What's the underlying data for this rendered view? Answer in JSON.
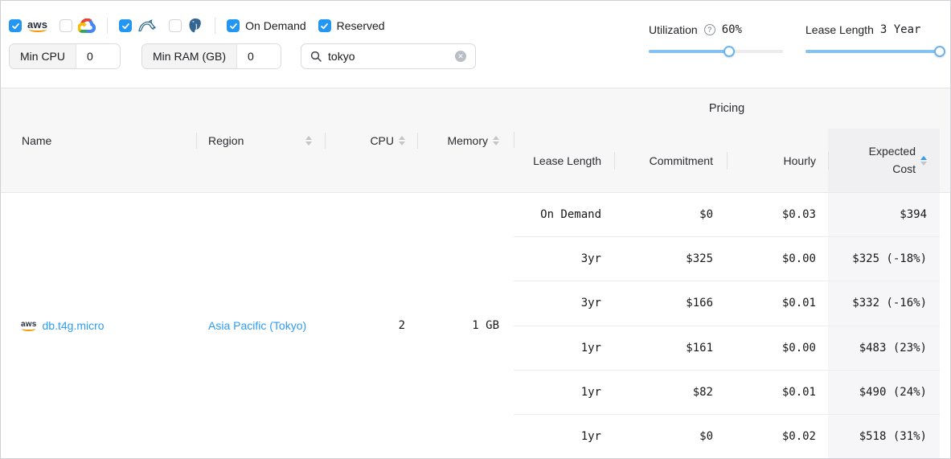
{
  "filters": {
    "providers": [
      {
        "name": "aws",
        "checked": true
      },
      {
        "name": "google-cloud",
        "checked": false
      }
    ],
    "engines": [
      {
        "name": "mysql",
        "checked": true
      },
      {
        "name": "postgresql",
        "checked": false
      }
    ],
    "pricing_types": [
      {
        "label": "On Demand",
        "checked": true
      },
      {
        "label": "Reserved",
        "checked": true
      }
    ],
    "min_cpu": {
      "label": "Min CPU",
      "value": "0"
    },
    "min_ram": {
      "label": "Min RAM (GB)",
      "value": "0"
    },
    "search": {
      "value": "tokyo"
    },
    "utilization": {
      "label": "Utilization",
      "value": "60%",
      "percent": 60
    },
    "lease_length": {
      "label": "Lease Length",
      "value": "3 Year",
      "percent": 100
    }
  },
  "table": {
    "headers": {
      "name": "Name",
      "region": "Region",
      "cpu": "CPU",
      "memory": "Memory",
      "pricing_group": "Pricing",
      "lease_length": "Lease Length",
      "commitment": "Commitment",
      "hourly": "Hourly",
      "expected_cost_line1": "Expected",
      "expected_cost_line2": "Cost"
    },
    "sort": {
      "column": "expected_cost",
      "direction": "asc"
    },
    "row": {
      "provider": "aws",
      "name": "db.t4g.micro",
      "region": "Asia Pacific (Tokyo)",
      "cpu": "2",
      "memory": "1 GB",
      "pricing": [
        {
          "lease": "On Demand",
          "commitment": "$0",
          "hourly": "$0.03",
          "expected": "$394"
        },
        {
          "lease": "3yr",
          "commitment": "$325",
          "hourly": "$0.00",
          "expected": "$325 (-18%)"
        },
        {
          "lease": "3yr",
          "commitment": "$166",
          "hourly": "$0.01",
          "expected": "$332 (-16%)"
        },
        {
          "lease": "1yr",
          "commitment": "$161",
          "hourly": "$0.00",
          "expected": "$483 (23%)"
        },
        {
          "lease": "1yr",
          "commitment": "$82",
          "hourly": "$0.01",
          "expected": "$490 (24%)"
        },
        {
          "lease": "1yr",
          "commitment": "$0",
          "hourly": "$0.02",
          "expected": "$518 (31%)"
        }
      ]
    }
  },
  "colors": {
    "accent_blue": "#2196f3",
    "link_blue": "#2e9cf6",
    "slider_blue": "#85c2f2",
    "aws_orange": "#f79400",
    "mysql_teal": "#2f6f8f",
    "postgres_blue": "#336791"
  }
}
